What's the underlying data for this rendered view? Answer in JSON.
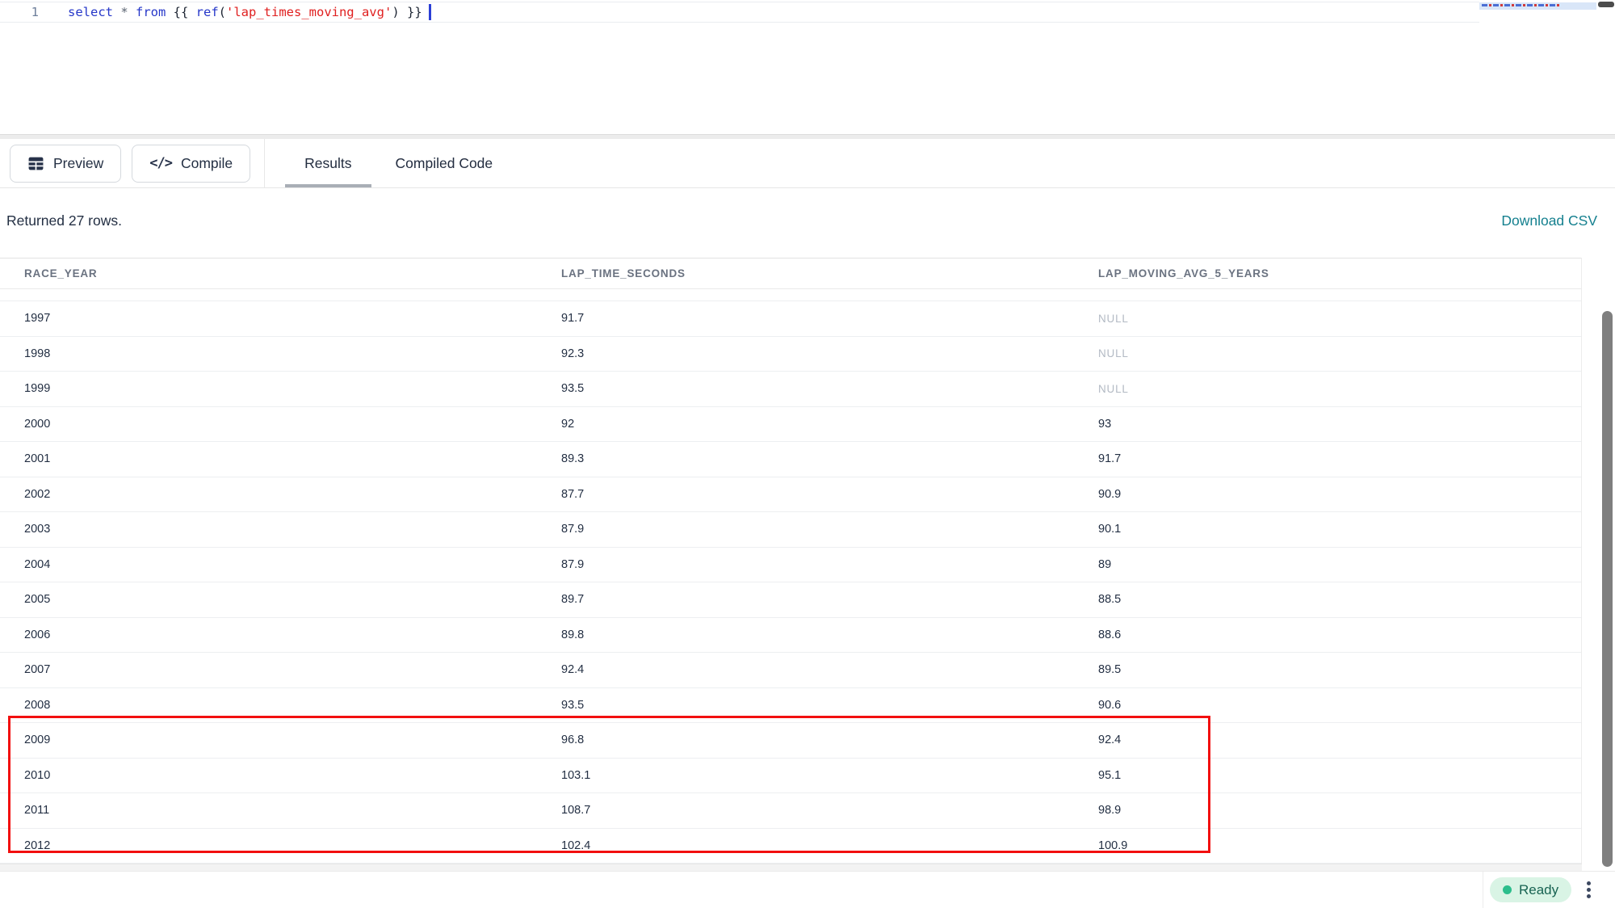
{
  "editor": {
    "line_number": "1",
    "tokens": [
      {
        "text": "select",
        "type": "keyword"
      },
      {
        "text": " * ",
        "type": "operator"
      },
      {
        "text": "from",
        "type": "keyword"
      },
      {
        "text": " {{ ",
        "type": "brace"
      },
      {
        "text": "ref",
        "type": "function"
      },
      {
        "text": "(",
        "type": "paren"
      },
      {
        "text": "'lap_times_moving_avg'",
        "type": "string"
      },
      {
        "text": ")",
        "type": "paren"
      },
      {
        "text": " }}",
        "type": "brace"
      }
    ]
  },
  "toolbar": {
    "preview_label": "Preview",
    "compile_label": "Compile",
    "tabs": [
      {
        "label": "Results",
        "active": true
      },
      {
        "label": "Compiled Code",
        "active": false
      }
    ]
  },
  "results": {
    "status_text": "Returned 27 rows.",
    "download_label": "Download CSV"
  },
  "table": {
    "columns": [
      "RACE_YEAR",
      "LAP_TIME_SECONDS",
      "LAP_MOVING_AVG_5_YEARS"
    ],
    "rows": [
      {
        "race_year": "1997",
        "lap_time_seconds": "91.7",
        "lap_moving_avg_5_years": "NULL"
      },
      {
        "race_year": "1998",
        "lap_time_seconds": "92.3",
        "lap_moving_avg_5_years": "NULL"
      },
      {
        "race_year": "1999",
        "lap_time_seconds": "93.5",
        "lap_moving_avg_5_years": "NULL"
      },
      {
        "race_year": "2000",
        "lap_time_seconds": "92",
        "lap_moving_avg_5_years": "93"
      },
      {
        "race_year": "2001",
        "lap_time_seconds": "89.3",
        "lap_moving_avg_5_years": "91.7"
      },
      {
        "race_year": "2002",
        "lap_time_seconds": "87.7",
        "lap_moving_avg_5_years": "90.9"
      },
      {
        "race_year": "2003",
        "lap_time_seconds": "87.9",
        "lap_moving_avg_5_years": "90.1"
      },
      {
        "race_year": "2004",
        "lap_time_seconds": "87.9",
        "lap_moving_avg_5_years": "89"
      },
      {
        "race_year": "2005",
        "lap_time_seconds": "89.7",
        "lap_moving_avg_5_years": "88.5"
      },
      {
        "race_year": "2006",
        "lap_time_seconds": "89.8",
        "lap_moving_avg_5_years": "88.6"
      },
      {
        "race_year": "2007",
        "lap_time_seconds": "92.4",
        "lap_moving_avg_5_years": "89.5"
      },
      {
        "race_year": "2008",
        "lap_time_seconds": "93.5",
        "lap_moving_avg_5_years": "90.6"
      },
      {
        "race_year": "2009",
        "lap_time_seconds": "96.8",
        "lap_moving_avg_5_years": "92.4"
      },
      {
        "race_year": "2010",
        "lap_time_seconds": "103.1",
        "lap_moving_avg_5_years": "95.1"
      },
      {
        "race_year": "2011",
        "lap_time_seconds": "108.7",
        "lap_moving_avg_5_years": "98.9"
      },
      {
        "race_year": "2012",
        "lap_time_seconds": "102.4",
        "lap_moving_avg_5_years": "100.9"
      }
    ],
    "highlighted_rows": [
      "2009",
      "2010",
      "2011",
      "2012"
    ]
  },
  "statusbar": {
    "ready_label": "Ready"
  },
  "colors": {
    "accent_teal": "#15808F",
    "highlight_red": "#F20F0F",
    "ready_badge_bg": "#D9F4E5",
    "ready_text": "#186352",
    "ready_dot": "#2CBE8C",
    "keyword_blue": "#2637C9",
    "string_red": "#E02020"
  }
}
